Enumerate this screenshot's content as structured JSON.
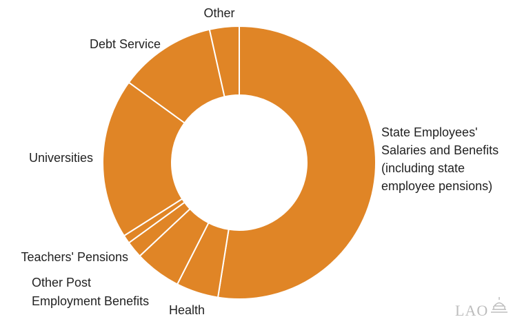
{
  "chart_data": {
    "type": "pie",
    "donut": true,
    "color": "#E08526",
    "separator_color": "#ffffff",
    "slices": [
      {
        "label": "State Employees' Salaries and Benefits (including state employee pensions)",
        "value": 52.5
      },
      {
        "label": "Health",
        "value": 5.0
      },
      {
        "label": "Other Post Employment Benefits",
        "value": 5.5
      },
      {
        "label": "Teachers' Pensions",
        "value": 2.0
      },
      {
        "label": "",
        "value": 1.0
      },
      {
        "label": "Universities",
        "value": 19.0
      },
      {
        "label": "Debt Service",
        "value": 11.5
      },
      {
        "label": "Other",
        "value": 3.5
      }
    ],
    "labels": {
      "state": [
        "State Employees'",
        "Salaries and Benefits",
        "(including state",
        "employee pensions)"
      ],
      "health": [
        "Health"
      ],
      "opeb": [
        "Other Post",
        "Employment Benefits"
      ],
      "teachers": [
        "Teachers' Pensions"
      ],
      "universities": [
        "Universities"
      ],
      "debt": [
        "Debt Service"
      ],
      "other": [
        "Other"
      ]
    }
  },
  "logo_text": "LAO"
}
